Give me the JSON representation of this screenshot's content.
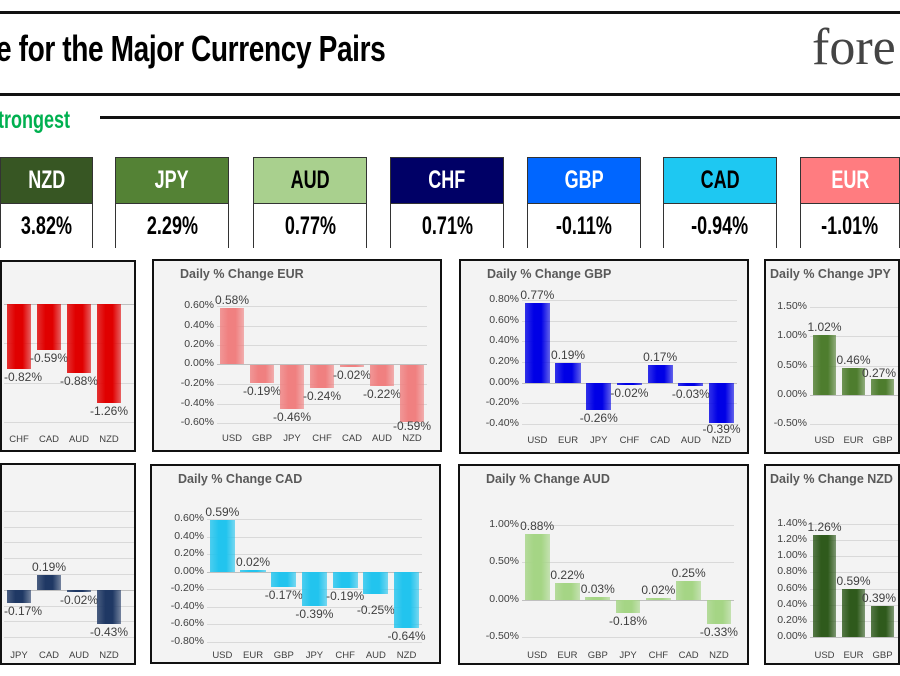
{
  "header": {
    "title": "e for the Major Currency Pairs",
    "logo_text": "fore",
    "strongest_label": "trongest"
  },
  "currencies": [
    {
      "code": "NZD",
      "change": "3.82%",
      "color": "#375623",
      "text_color": "#ffffff"
    },
    {
      "code": "JPY",
      "change": "2.29%",
      "color": "#548235",
      "text_color": "#ffffff"
    },
    {
      "code": "AUD",
      "change": "0.77%",
      "color": "#a9d08e",
      "text_color": "#000000"
    },
    {
      "code": "CHF",
      "change": "0.71%",
      "color": "#000066",
      "text_color": "#ffffff"
    },
    {
      "code": "GBP",
      "change": "-0.11%",
      "color": "#0066ff",
      "text_color": "#ffffff"
    },
    {
      "code": "CAD",
      "change": "-0.94%",
      "color": "#1ec8f2",
      "text_color": "#000000"
    },
    {
      "code": "EUR",
      "change": "-1.01%",
      "color": "#ff7c80",
      "text_color": "#ffffff"
    }
  ],
  "chart_data": [
    {
      "type": "bar",
      "title": "",
      "categories": [
        "CHF",
        "CAD",
        "AUD",
        "NZD"
      ],
      "values": [
        -0.82,
        -0.59,
        -0.88,
        -1.26
      ],
      "ylim": [
        -1.5,
        0
      ],
      "ytick_step": 0.5,
      "tick_labels_visible": false,
      "grid": true,
      "color": "#e00000"
    },
    {
      "type": "bar",
      "title": "Daily % Change EUR",
      "categories": [
        "USD",
        "GBP",
        "JPY",
        "CHF",
        "CAD",
        "AUD",
        "NZD"
      ],
      "values": [
        0.58,
        -0.19,
        -0.46,
        -0.24,
        -0.02,
        -0.22,
        -0.59
      ],
      "ylim": [
        -0.6,
        0.6
      ],
      "ytick_step": 0.2,
      "tick_labels_visible": true,
      "grid": true,
      "color": "#f08080"
    },
    {
      "type": "bar",
      "title": "Daily % Change GBP",
      "categories": [
        "USD",
        "EUR",
        "JPY",
        "CHF",
        "CAD",
        "AUD",
        "NZD"
      ],
      "values": [
        0.77,
        0.19,
        -0.26,
        -0.02,
        0.17,
        -0.03,
        -0.39
      ],
      "ylim": [
        -0.4,
        0.8
      ],
      "ytick_step": 0.2,
      "tick_labels_visible": true,
      "grid": true,
      "color": "#0000e6"
    },
    {
      "type": "bar",
      "title": "Daily % Change JPY",
      "categories": [
        "USD",
        "EUR",
        "GBP"
      ],
      "values": [
        1.02,
        0.46,
        0.27
      ],
      "ylim": [
        -0.5,
        1.5
      ],
      "ytick_step": 0.5,
      "tick_labels_visible": true,
      "grid": true,
      "color": "#4e7d2e"
    },
    {
      "type": "bar",
      "title": "",
      "categories": [
        "JPY",
        "CAD",
        "AUD",
        "NZD"
      ],
      "values": [
        -0.17,
        0.19,
        -0.02,
        -0.43
      ],
      "ylim": [
        -0.6,
        1.0
      ],
      "ytick_step": 0.2,
      "tick_labels_visible": false,
      "grid": true,
      "color": "#1f3864"
    },
    {
      "type": "bar",
      "title": "Daily % Change CAD",
      "categories": [
        "USD",
        "EUR",
        "GBP",
        "JPY",
        "CHF",
        "AUD",
        "NZD"
      ],
      "values": [
        0.59,
        0.02,
        -0.17,
        -0.39,
        -0.19,
        -0.25,
        -0.64
      ],
      "ylim": [
        -0.8,
        0.6
      ],
      "ytick_step": 0.2,
      "tick_labels_visible": true,
      "grid": true,
      "color": "#22c4ee"
    },
    {
      "type": "bar",
      "title": "Daily % Change AUD",
      "categories": [
        "USD",
        "EUR",
        "GBP",
        "JPY",
        "CHF",
        "CAD",
        "NZD"
      ],
      "values": [
        0.88,
        0.22,
        0.03,
        -0.18,
        0.02,
        0.25,
        -0.33
      ],
      "ylim": [
        -0.5,
        1.0
      ],
      "ytick_step": 0.5,
      "tick_labels_visible": true,
      "grid": true,
      "color": "#a5d585"
    },
    {
      "type": "bar",
      "title": "Daily % Change NZD",
      "categories": [
        "USD",
        "EUR",
        "GBP"
      ],
      "values": [
        1.26,
        0.59,
        0.39
      ],
      "ylim": [
        0,
        1.4
      ],
      "ytick_step": 0.2,
      "tick_labels_visible": true,
      "grid": true,
      "color": "#2f5a1c"
    }
  ]
}
